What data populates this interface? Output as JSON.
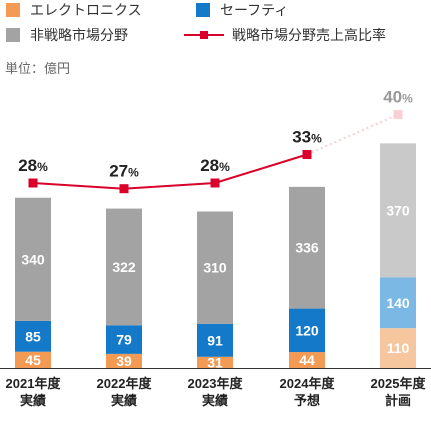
{
  "legend": {
    "electronics": "エレクトロニクス",
    "safety": "セーフティ",
    "non_strategic": "非戦略市場分野",
    "ratio": "戦略市場分野売上高比率"
  },
  "unit_label": "単位：億円",
  "colors": {
    "electronics": "#f39a55",
    "electronics_plan": "#f6c79e",
    "safety": "#1479c9",
    "safety_plan": "#7bb8e3",
    "non_strategic": "#a3a3a3",
    "non_strategic_plan": "#c9c9c9",
    "ratio_line": "#d9002a",
    "ratio_plan": "#f7cfd4"
  },
  "chart_data": {
    "type": "bar",
    "stacked": true,
    "categories": [
      [
        "2021年度",
        "実績"
      ],
      [
        "2022年度",
        "実績"
      ],
      [
        "2023年度",
        "実績"
      ],
      [
        "2024年度",
        "予想"
      ],
      [
        "2025年度",
        "計画"
      ]
    ],
    "series": [
      {
        "name": "エレクトロニクス",
        "values": [
          45,
          39,
          31,
          44,
          110
        ]
      },
      {
        "name": "セーフティ",
        "values": [
          85,
          79,
          91,
          120,
          140
        ]
      },
      {
        "name": "非戦略市場分野",
        "values": [
          340,
          322,
          310,
          336,
          370
        ]
      }
    ],
    "line_series": {
      "name": "戦略市場分野売上高比率",
      "values": [
        28,
        27,
        28,
        33,
        40
      ],
      "labels": [
        "28%",
        "27%",
        "28%",
        "33%",
        "40%"
      ]
    },
    "ylabel": "単位：億円",
    "ylim": [
      0,
      640
    ]
  }
}
